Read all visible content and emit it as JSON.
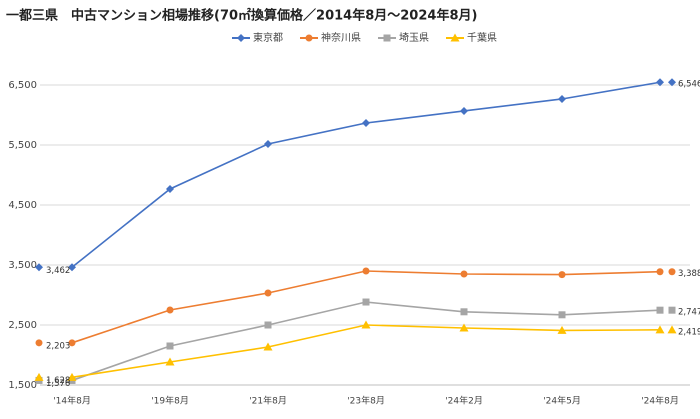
{
  "chart_data": {
    "type": "line",
    "title": "一都三県　中古マンション相場推移(70㎡換算価格／2014年8月～2024年8月)",
    "categories": [
      "'14年8月",
      "'19年8月",
      "'21年8月",
      "'23年8月",
      "'24年2月",
      "'24年5月",
      "'24年8月"
    ],
    "series": [
      {
        "name": "東京都",
        "color": "#4472c4",
        "marker": "diamond",
        "values": [
          3462,
          4767,
          5517,
          5867,
          6067,
          6267,
          6546
        ],
        "value_labels": [
          "3,462",
          null,
          null,
          null,
          null,
          null,
          "6,546"
        ]
      },
      {
        "name": "神奈川県",
        "color": "#ed7d31",
        "marker": "circle",
        "values": [
          2203,
          2750,
          3033,
          3400,
          3350,
          3340,
          3388
        ],
        "value_labels": [
          "2,203",
          null,
          null,
          null,
          null,
          null,
          "3,388"
        ]
      },
      {
        "name": "埼玉県",
        "color": "#a5a5a5",
        "marker": "square",
        "values": [
          1576,
          2150,
          2500,
          2883,
          2720,
          2670,
          2747
        ],
        "value_labels": [
          "1,576",
          null,
          null,
          null,
          null,
          null,
          "2,747"
        ]
      },
      {
        "name": "千葉県",
        "color": "#ffc000",
        "marker": "triangle",
        "values": [
          1628,
          1883,
          2133,
          2500,
          2450,
          2410,
          2419
        ],
        "value_labels": [
          "1,628",
          null,
          null,
          null,
          null,
          null,
          "2,419"
        ]
      }
    ],
    "ylim": [
      1500,
      7300
    ],
    "yticks": [
      {
        "value": 1500,
        "label": "1,500"
      },
      {
        "value": 2500,
        "label": "2,500"
      },
      {
        "value": 3500,
        "label": "3,500"
      },
      {
        "value": 4500,
        "label": "4,500"
      },
      {
        "value": 5500,
        "label": "5,500"
      },
      {
        "value": 6500,
        "label": "6,500"
      }
    ],
    "grid": true
  }
}
